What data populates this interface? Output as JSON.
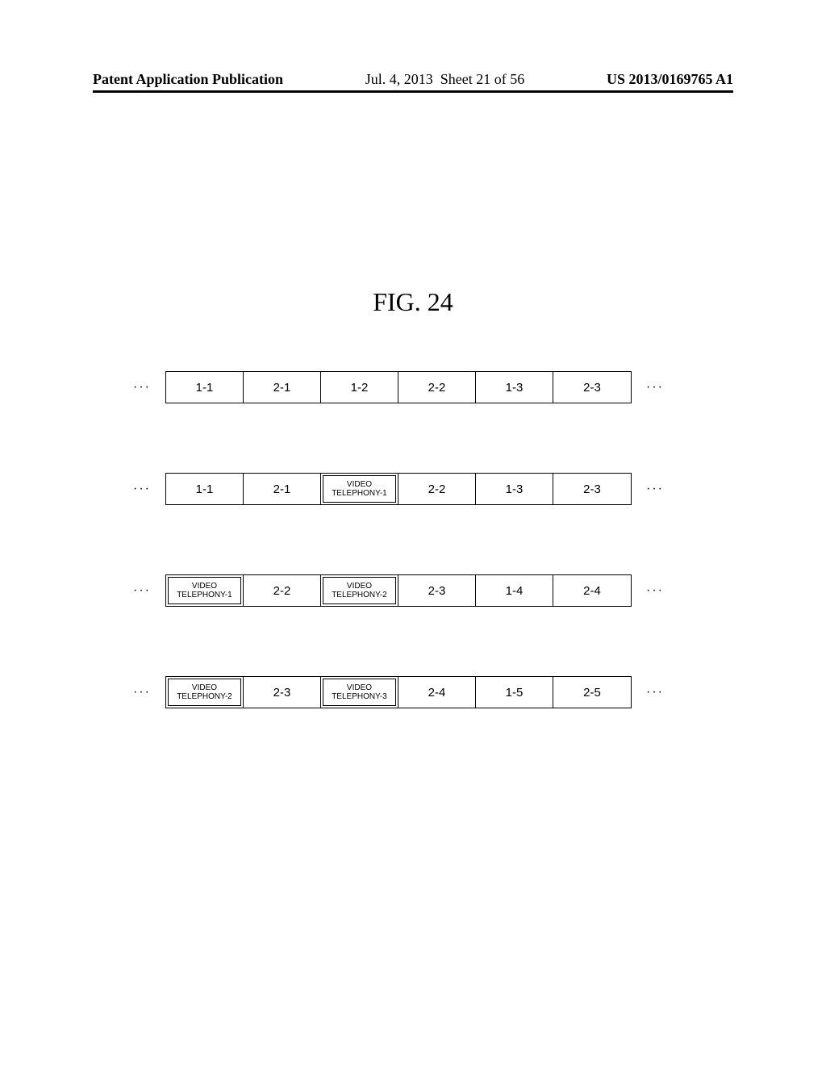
{
  "header": {
    "left": "Patent Application Publication",
    "date": "Jul. 4, 2013",
    "sheet": "Sheet 21 of 56",
    "pubnum": "US 2013/0169765 A1"
  },
  "figure_title": "FIG.  24",
  "ellipsis": "···",
  "rows": [
    {
      "cells": [
        {
          "type": "plain",
          "text": "1-1"
        },
        {
          "type": "plain",
          "text": "2-1"
        },
        {
          "type": "plain",
          "text": "1-2"
        },
        {
          "type": "plain",
          "text": "2-2"
        },
        {
          "type": "plain",
          "text": "1-3"
        },
        {
          "type": "plain",
          "text": "2-3"
        }
      ]
    },
    {
      "cells": [
        {
          "type": "plain",
          "text": "1-1"
        },
        {
          "type": "plain",
          "text": "2-1"
        },
        {
          "type": "video",
          "line1": "VIDEO",
          "line2": "TELEPHONY-1"
        },
        {
          "type": "plain",
          "text": "2-2"
        },
        {
          "type": "plain",
          "text": "1-3"
        },
        {
          "type": "plain",
          "text": "2-3"
        }
      ]
    },
    {
      "cells": [
        {
          "type": "video",
          "line1": "VIDEO",
          "line2": "TELEPHONY-1"
        },
        {
          "type": "plain",
          "text": "2-2"
        },
        {
          "type": "video",
          "line1": "VIDEO",
          "line2": "TELEPHONY-2"
        },
        {
          "type": "plain",
          "text": "2-3"
        },
        {
          "type": "plain",
          "text": "1-4"
        },
        {
          "type": "plain",
          "text": "2-4"
        }
      ]
    },
    {
      "cells": [
        {
          "type": "video",
          "line1": "VIDEO",
          "line2": "TELEPHONY-2"
        },
        {
          "type": "plain",
          "text": "2-3"
        },
        {
          "type": "video",
          "line1": "VIDEO",
          "line2": "TELEPHONY-3"
        },
        {
          "type": "plain",
          "text": "2-4"
        },
        {
          "type": "plain",
          "text": "1-5"
        },
        {
          "type": "plain",
          "text": "2-5"
        }
      ]
    }
  ]
}
